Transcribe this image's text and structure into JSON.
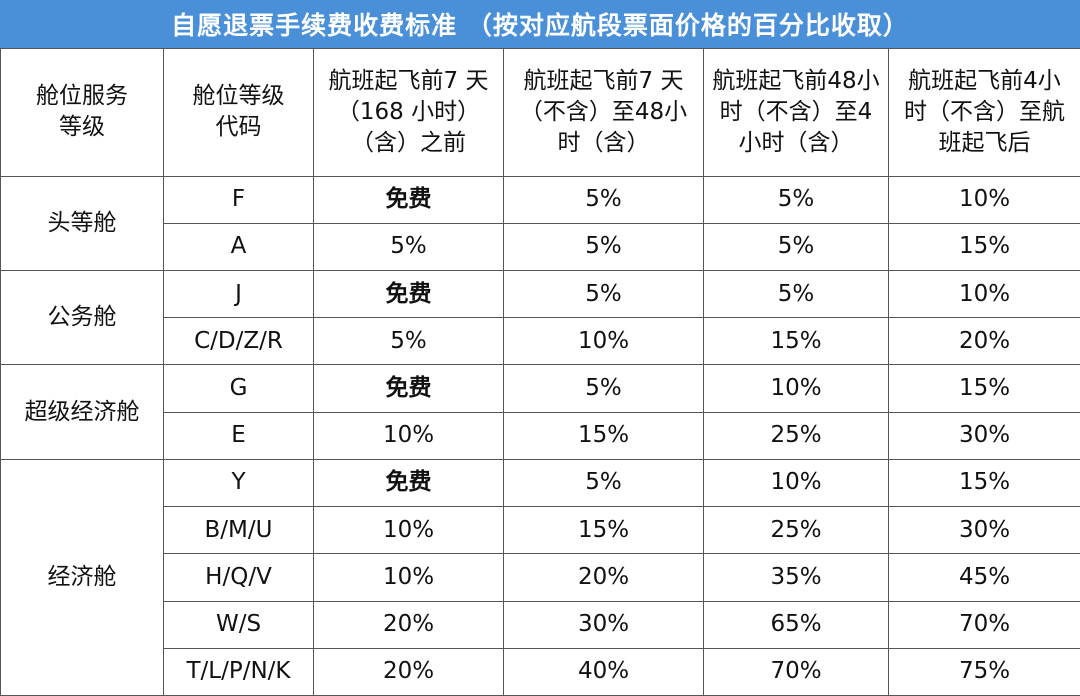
{
  "title": "自愿退票手续费收费标准 （按对应航段票面价格的百分比收取）",
  "columns": [
    "舱位服务\n等级",
    "舱位等级\n代码",
    "航班起飞前7 天\n（168 小时）\n（含）之前",
    "航班起飞前7 天\n（不含）至48小\n时（含）",
    "航班起飞前48小\n时（不含）至4\n小时（含）",
    "航班起飞前4小\n时（不含）至航\n班起飞后"
  ],
  "groups": [
    {
      "name": "头等舱",
      "rows": [
        {
          "code": "F",
          "fees": [
            "免费",
            "5%",
            "5%",
            "10%"
          ]
        },
        {
          "code": "A",
          "fees": [
            "5%",
            "5%",
            "5%",
            "15%"
          ]
        }
      ]
    },
    {
      "name": "公务舱",
      "rows": [
        {
          "code": "J",
          "fees": [
            "免费",
            "5%",
            "5%",
            "10%"
          ]
        },
        {
          "code": "C/D/Z/R",
          "fees": [
            "5%",
            "10%",
            "15%",
            "20%"
          ]
        }
      ]
    },
    {
      "name": "超级经济舱",
      "rows": [
        {
          "code": "G",
          "fees": [
            "免费",
            "5%",
            "10%",
            "15%"
          ]
        },
        {
          "code": "E",
          "fees": [
            "10%",
            "15%",
            "25%",
            "30%"
          ]
        }
      ]
    },
    {
      "name": "经济舱",
      "rows": [
        {
          "code": "Y",
          "fees": [
            "免费",
            "5%",
            "10%",
            "15%"
          ]
        },
        {
          "code": "B/M/U",
          "fees": [
            "10%",
            "15%",
            "25%",
            "30%"
          ]
        },
        {
          "code": "H/Q/V",
          "fees": [
            "10%",
            "20%",
            "35%",
            "45%"
          ]
        },
        {
          "code": "W/S",
          "fees": [
            "20%",
            "30%",
            "65%",
            "70%"
          ]
        },
        {
          "code": "T/L/P/N/K",
          "fees": [
            "20%",
            "40%",
            "70%",
            "75%"
          ]
        }
      ]
    }
  ],
  "colors": {
    "title_bg": "#4a90d9",
    "title_text": "#ffffff",
    "border": "#555555"
  }
}
